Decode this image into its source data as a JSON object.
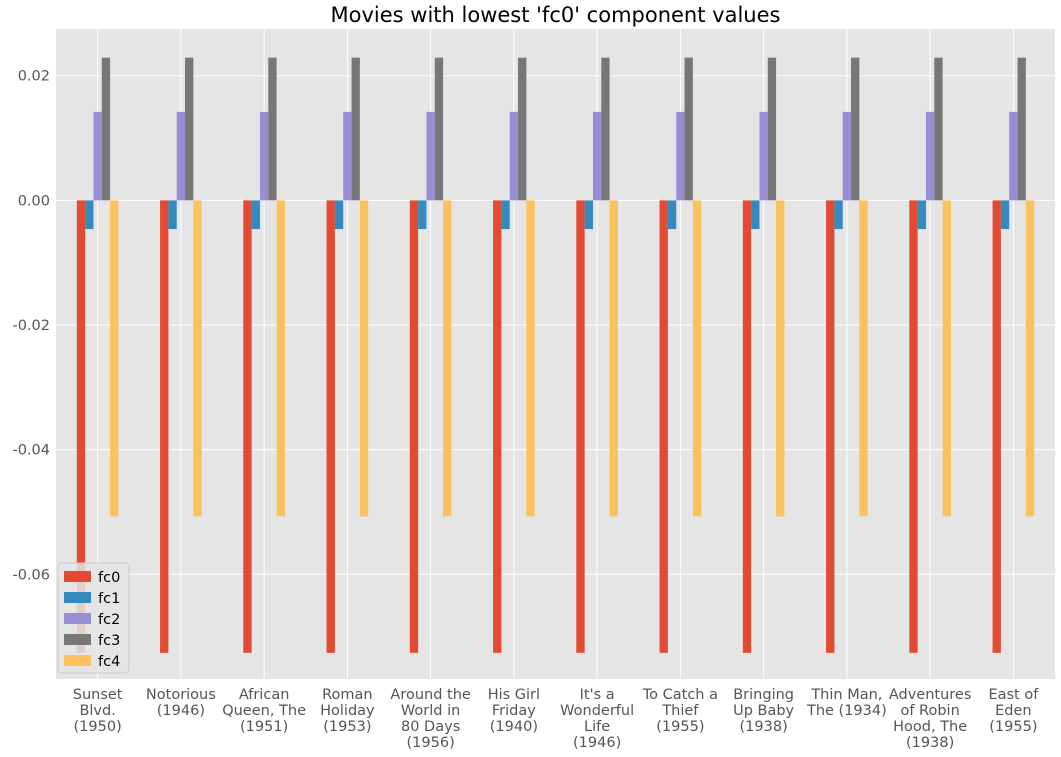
{
  "chart_data": {
    "type": "bar",
    "title": "Movies with lowest 'fc0' component values",
    "xlabel": "",
    "ylabel": "",
    "categories": [
      "Sunset\nBlvd.\n(1950)",
      "Notorious\n(1946)",
      "African\nQueen, The\n(1951)",
      "Roman\nHoliday\n(1953)",
      "Around the\nWorld in\n80 Days\n(1956)",
      "His Girl\nFriday\n(1940)",
      "It's a\nWonderful\nLife\n(1946)",
      "To Catch a\nThief\n(1955)",
      "Bringing\nUp Baby\n(1938)",
      "Thin Man,\nThe (1934)",
      "Adventures\nof Robin\nHood, The\n(1938)",
      "East of\nEden\n(1955)"
    ],
    "series": [
      {
        "name": "fc0",
        "color": "#E24A33",
        "values": [
          -0.0726,
          -0.0726,
          -0.0726,
          -0.0726,
          -0.0726,
          -0.0726,
          -0.0726,
          -0.0726,
          -0.0726,
          -0.0726,
          -0.0726,
          -0.0726
        ]
      },
      {
        "name": "fc1",
        "color": "#348ABD",
        "values": [
          -0.0046,
          -0.0046,
          -0.0046,
          -0.0046,
          -0.0046,
          -0.0046,
          -0.0046,
          -0.0046,
          -0.0046,
          -0.0046,
          -0.0046,
          -0.0046
        ]
      },
      {
        "name": "fc2",
        "color": "#988ED5",
        "values": [
          0.0142,
          0.0142,
          0.0142,
          0.0142,
          0.0142,
          0.0142,
          0.0142,
          0.0142,
          0.0142,
          0.0142,
          0.0142,
          0.0142
        ]
      },
      {
        "name": "fc3",
        "color": "#777777",
        "values": [
          0.0229,
          0.0229,
          0.0229,
          0.0229,
          0.0229,
          0.0229,
          0.0229,
          0.0229,
          0.0229,
          0.0229,
          0.0229,
          0.0229
        ]
      },
      {
        "name": "fc4",
        "color": "#FBC15E",
        "values": [
          -0.0507,
          -0.0507,
          -0.0507,
          -0.0507,
          -0.0507,
          -0.0507,
          -0.0507,
          -0.0507,
          -0.0507,
          -0.0507,
          -0.0507,
          -0.0507
        ]
      }
    ],
    "ylim": [
      -0.0768,
      0.0275
    ],
    "yticks": [
      0.02,
      0.0,
      -0.02,
      -0.04,
      -0.06
    ],
    "ytick_labels": [
      "0.02",
      "0.00",
      "-0.02",
      "-0.04",
      "-0.06"
    ],
    "grid": true,
    "legend_position": "lower-left",
    "style": {
      "background": "#E5E5E5",
      "grid_color": "#FFFFFF"
    }
  }
}
